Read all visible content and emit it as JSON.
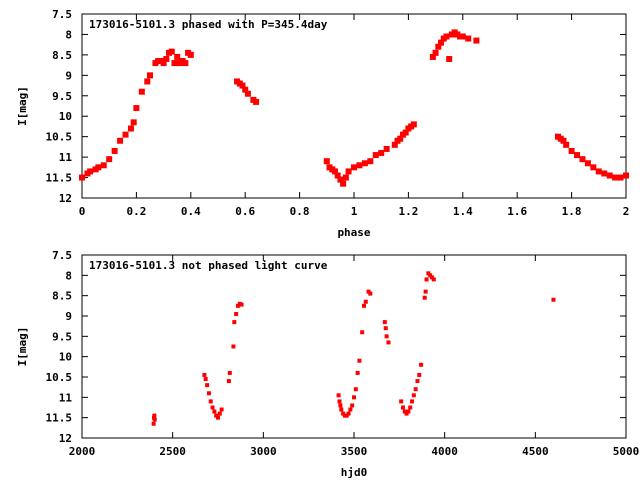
{
  "chart_data": [
    {
      "type": "scatter",
      "title": "173016-5101.3 phased with P=345.4day",
      "xlabel": "phase",
      "ylabel": "I[mag]",
      "xlim": [
        0,
        2
      ],
      "ylim": [
        12,
        7.5
      ],
      "y_axis_inverted": true,
      "grid": false,
      "x_ticks": [
        "0",
        "0.2",
        "0.4",
        "0.6",
        "0.8",
        "1",
        "1.2",
        "1.4",
        "1.6",
        "1.8",
        "2"
      ],
      "x_tick_values": [
        0,
        0.2,
        0.4,
        0.6,
        0.8,
        1.0,
        1.2,
        1.4,
        1.6,
        1.8,
        2.0
      ],
      "y_ticks": [
        "7.5",
        "8",
        "8.5",
        "9",
        "9.5",
        "10",
        "10.5",
        "11",
        "11.5",
        "12"
      ],
      "y_tick_values": [
        7.5,
        8,
        8.5,
        9,
        9.5,
        10,
        10.5,
        11,
        11.5,
        12
      ],
      "marker_color": "#ff0000",
      "series": [
        {
          "x": [
            0.0,
            0.02,
            0.03,
            0.05,
            0.06,
            0.08,
            0.1,
            0.12,
            0.14,
            0.16,
            0.18,
            0.19,
            0.2,
            0.22,
            0.24,
            0.25,
            0.27,
            0.28,
            0.29,
            0.3,
            0.31,
            0.32,
            0.33,
            0.34,
            0.35,
            0.36,
            0.37,
            0.38,
            0.39,
            0.4,
            0.57,
            0.58,
            0.59,
            0.6,
            0.61,
            0.63,
            0.64,
            0.9,
            0.91,
            0.92,
            0.93,
            0.94,
            0.95,
            0.96,
            0.97,
            0.98,
            1.0,
            1.02,
            1.04,
            1.06,
            1.08,
            1.1,
            1.12,
            1.15,
            1.16,
            1.17,
            1.18,
            1.19,
            1.2,
            1.21,
            1.22,
            1.29,
            1.3,
            1.31,
            1.32,
            1.33,
            1.34,
            1.35,
            1.36,
            1.37,
            1.38,
            1.39,
            1.4,
            1.42,
            1.45,
            1.75,
            1.76,
            1.77,
            1.78,
            1.8,
            1.82,
            1.84,
            1.86,
            1.88,
            1.9,
            1.92,
            1.94,
            1.96,
            1.98,
            2.0
          ],
          "y": [
            11.5,
            11.4,
            11.35,
            11.3,
            11.25,
            11.2,
            11.05,
            10.85,
            10.6,
            10.45,
            10.3,
            10.15,
            9.8,
            9.4,
            9.15,
            9.0,
            8.7,
            8.65,
            8.65,
            8.7,
            8.6,
            8.45,
            8.42,
            8.7,
            8.55,
            8.7,
            8.65,
            8.7,
            8.45,
            8.5,
            9.15,
            9.2,
            9.25,
            9.35,
            9.45,
            9.6,
            9.65,
            11.1,
            11.25,
            11.3,
            11.35,
            11.45,
            11.55,
            11.65,
            11.5,
            11.35,
            11.25,
            11.2,
            11.15,
            11.1,
            10.95,
            10.9,
            10.8,
            10.7,
            10.6,
            10.55,
            10.45,
            10.4,
            10.3,
            10.25,
            10.2,
            8.55,
            8.45,
            8.3,
            8.2,
            8.1,
            8.05,
            8.6,
            8.0,
            7.95,
            8.0,
            8.05,
            8.05,
            8.1,
            8.15,
            10.5,
            10.55,
            10.6,
            10.7,
            10.85,
            10.95,
            11.05,
            11.15,
            11.25,
            11.35,
            11.4,
            11.45,
            11.5,
            11.5,
            11.45
          ]
        }
      ]
    },
    {
      "type": "scatter",
      "title": "173016-5101.3 not phased light curve",
      "xlabel": "hjd0",
      "ylabel": "I[mag]",
      "xlim": [
        2000,
        5000
      ],
      "ylim": [
        12,
        7.5
      ],
      "y_axis_inverted": true,
      "grid": false,
      "x_ticks": [
        "2000",
        "2500",
        "3000",
        "3500",
        "4000",
        "4500",
        "5000"
      ],
      "x_tick_values": [
        2000,
        2500,
        3000,
        3500,
        4000,
        4500,
        5000
      ],
      "y_ticks": [
        "7.5",
        "8",
        "8.5",
        "9",
        "9.5",
        "10",
        "10.5",
        "11",
        "11.5",
        "12"
      ],
      "y_tick_values": [
        7.5,
        8,
        8.5,
        9,
        9.5,
        10,
        10.5,
        11,
        11.5,
        12
      ],
      "marker_color": "#ff0000",
      "series": [
        {
          "x": [
            2395,
            2397,
            2399,
            2401,
            2675,
            2682,
            2690,
            2700,
            2710,
            2720,
            2730,
            2740,
            2750,
            2760,
            2770,
            2810,
            2815,
            2835,
            2840,
            2850,
            2860,
            2870,
            2880,
            3415,
            3420,
            3425,
            3430,
            3440,
            3450,
            3460,
            3470,
            3480,
            3490,
            3500,
            3510,
            3520,
            3530,
            3545,
            3555,
            3565,
            3580,
            3590,
            3670,
            3675,
            3680,
            3690,
            3760,
            3770,
            3780,
            3790,
            3800,
            3810,
            3820,
            3830,
            3840,
            3850,
            3860,
            3870,
            3890,
            3895,
            3900,
            3910,
            3920,
            3930,
            3940,
            4600
          ],
          "y": [
            11.65,
            11.5,
            11.45,
            11.55,
            10.45,
            10.55,
            10.7,
            10.9,
            11.1,
            11.25,
            11.35,
            11.45,
            11.5,
            11.4,
            11.3,
            10.6,
            10.4,
            9.75,
            9.15,
            8.95,
            8.75,
            8.7,
            8.72,
            10.95,
            11.1,
            11.2,
            11.3,
            11.4,
            11.45,
            11.45,
            11.4,
            11.3,
            11.2,
            11.0,
            10.8,
            10.4,
            10.1,
            9.4,
            8.75,
            8.65,
            8.4,
            8.45,
            9.15,
            9.3,
            9.5,
            9.65,
            11.1,
            11.25,
            11.35,
            11.4,
            11.35,
            11.25,
            11.1,
            10.95,
            10.8,
            10.6,
            10.45,
            10.2,
            8.55,
            8.4,
            8.1,
            7.95,
            8.0,
            8.05,
            8.1,
            8.6
          ]
        }
      ]
    }
  ]
}
